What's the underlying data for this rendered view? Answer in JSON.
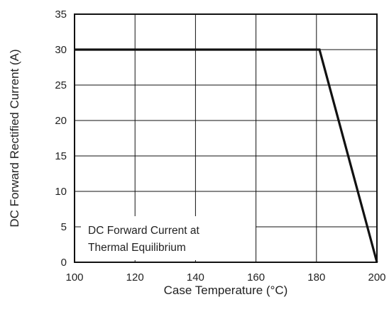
{
  "chart_data": {
    "type": "line",
    "xlabel": "Case Temperature (°C)",
    "ylabel": "DC Forward Rectified Current (A)",
    "xlim": [
      100,
      200
    ],
    "ylim": [
      0,
      35
    ],
    "x_ticks": [
      100,
      120,
      140,
      160,
      180,
      200
    ],
    "y_ticks": [
      0,
      5,
      10,
      15,
      20,
      25,
      30,
      35
    ],
    "grid": true,
    "series": [
      {
        "x": [
          100,
          181,
          200
        ],
        "y": [
          30,
          30,
          0
        ]
      }
    ],
    "annotations": [
      {
        "lines": [
          "DC Forward Current at",
          "Thermal Equilibrium"
        ]
      }
    ],
    "colors": {
      "line": "#111111",
      "grid": "#111111",
      "text": "#222222"
    }
  }
}
